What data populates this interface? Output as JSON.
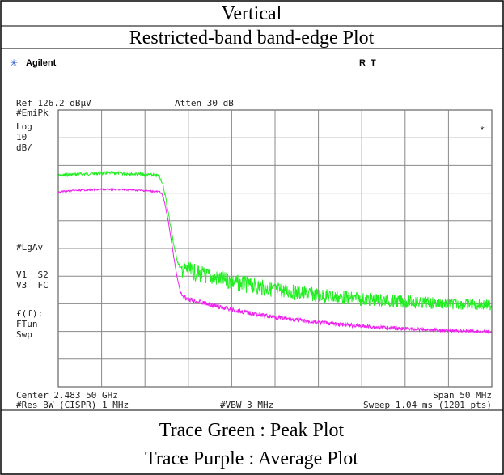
{
  "header": {
    "title": "Vertical",
    "subtitle": "Restricted-band band-edge Plot"
  },
  "screen": {
    "brand": "Agilent",
    "status": "R  T",
    "ref": "Ref 126.2 dBμV",
    "atten": "Atten 30 dB",
    "left_labels": [
      "#EmiPk",
      "Log",
      "10",
      "dB/",
      "#LgAv",
      "V1  S2",
      "V3  FC",
      "£(f):",
      "FTun",
      "Swp"
    ],
    "marker": "*",
    "center": "Center 2.483 50 GHz",
    "span": "Span 50 MHz",
    "res_bw": "#Res BW (CISPR) 1 MHz",
    "vbw": "#VBW 3 MHz",
    "sweep": "Sweep 1.04 ms (1201 pts)"
  },
  "footer": {
    "line1": "Trace Green : Peak Plot",
    "line2": "Trace Purple : Average Plot"
  }
}
